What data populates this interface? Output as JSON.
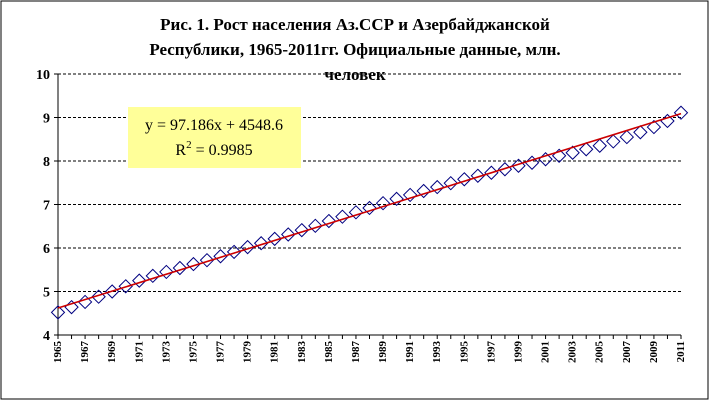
{
  "chart_data": {
    "type": "scatter",
    "title_lines": [
      "Рис. 1. Рост населения Аз.ССР и Азербайджанской",
      "Республики, 1965-2011гг. Официальные данные, млн.",
      "человек"
    ],
    "xlabel": "",
    "ylabel": "",
    "xlim": [
      1965,
      2011
    ],
    "ylim": [
      4,
      10
    ],
    "y_ticks": [
      4,
      5,
      6,
      7,
      8,
      9,
      10
    ],
    "x_ticks": [
      "1965",
      "1967",
      "1969",
      "1971",
      "1973",
      "1975",
      "1977",
      "1979",
      "1981",
      "1983",
      "1985",
      "1987",
      "1989",
      "1991",
      "1993",
      "1995",
      "1997",
      "1999",
      "2001",
      "2003",
      "2005",
      "2007",
      "2009",
      "2011"
    ],
    "grid": "horizontal dashed",
    "legend": "none",
    "series": [
      {
        "marker": "diamond",
        "color": "#000080",
        "x": [
          1965,
          1966,
          1967,
          1968,
          1969,
          1970,
          1971,
          1972,
          1973,
          1974,
          1975,
          1976,
          1977,
          1978,
          1979,
          1980,
          1981,
          1982,
          1983,
          1984,
          1985,
          1986,
          1987,
          1988,
          1989,
          1990,
          1991,
          1992,
          1993,
          1994,
          1995,
          1996,
          1997,
          1998,
          1999,
          2000,
          2001,
          2002,
          2003,
          2004,
          2005,
          2006,
          2007,
          2008,
          2009,
          2010,
          2011
        ],
        "y": [
          4.52,
          4.64,
          4.76,
          4.88,
          5.0,
          5.12,
          5.25,
          5.36,
          5.45,
          5.54,
          5.63,
          5.72,
          5.81,
          5.91,
          6.02,
          6.11,
          6.21,
          6.31,
          6.41,
          6.51,
          6.62,
          6.72,
          6.82,
          6.92,
          7.03,
          7.13,
          7.22,
          7.31,
          7.4,
          7.49,
          7.58,
          7.66,
          7.73,
          7.81,
          7.89,
          7.96,
          8.04,
          8.12,
          8.19,
          8.27,
          8.35,
          8.45,
          8.55,
          8.66,
          8.78,
          8.92,
          9.11
        ]
      }
    ],
    "trendline": {
      "type": "linear",
      "color": "#cc0000",
      "y_start": 4.62,
      "y_end": 9.09
    },
    "annotation": {
      "equation": "y = 97.186x + 4548.6",
      "r2_label": "R",
      "r2_sup": "2",
      "r2_value": " = 0.9985",
      "background": "#ffff99"
    }
  }
}
